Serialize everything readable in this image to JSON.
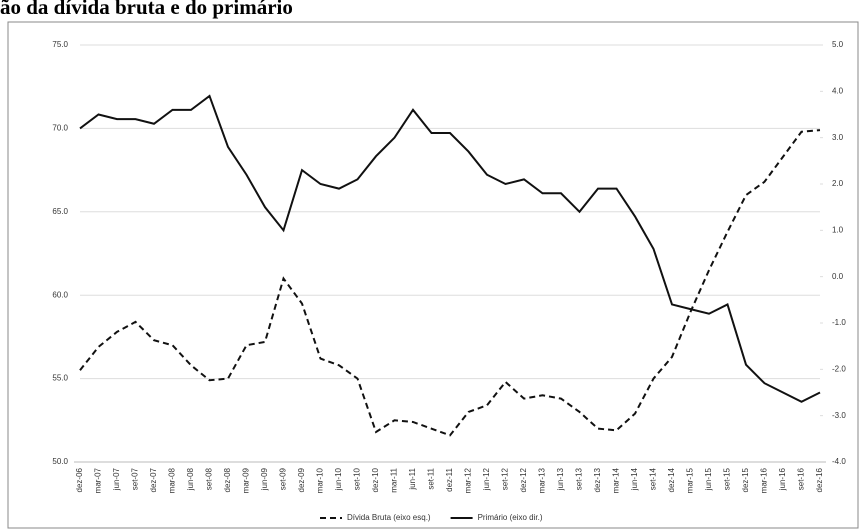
{
  "chart_data": {
    "type": "line",
    "title": "ão da dívida bruta e do primário",
    "categories": [
      "dez-06",
      "mar-07",
      "jun-07",
      "set-07",
      "dez-07",
      "mar-08",
      "jun-08",
      "set-08",
      "dez-08",
      "mar-09",
      "jun-09",
      "set-09",
      "dez-09",
      "mar-10",
      "jun-10",
      "set-10",
      "dez-10",
      "mar-11",
      "jun-11",
      "set-11",
      "dez-11",
      "mar-12",
      "jun-12",
      "set-12",
      "dez-12",
      "mar-13",
      "jun-13",
      "set-13",
      "dez-13",
      "mar-14",
      "jun-14",
      "set-14",
      "dez-14",
      "mar-15",
      "jun-15",
      "set-15",
      "dez-15",
      "mar-16",
      "jun-16",
      "set-16",
      "dez-16"
    ],
    "series": [
      {
        "name": "Dívida Bruta (eixo esq.)",
        "color": "#111111",
        "dash": true,
        "axis": "y",
        "values": [
          55.5,
          56.9,
          57.8,
          58.4,
          57.3,
          57.0,
          55.8,
          54.9,
          55.0,
          57.0,
          57.2,
          61.0,
          59.5,
          56.2,
          55.8,
          55.0,
          51.8,
          52.5,
          52.4,
          52.0,
          51.6,
          53.0,
          53.4,
          54.8,
          53.8,
          54.0,
          53.8,
          53.0,
          52.0,
          51.9,
          52.9,
          55.0,
          56.3,
          59.0,
          61.5,
          63.8,
          66.0,
          66.8,
          68.3,
          69.8,
          69.9
        ]
      },
      {
        "name": "Primário (eixo dir.)",
        "color": "#111111",
        "dash": false,
        "axis": "y2",
        "values": [
          3.2,
          3.5,
          3.4,
          3.4,
          3.3,
          3.6,
          3.6,
          3.9,
          2.8,
          2.2,
          1.5,
          1.0,
          2.3,
          2.0,
          1.9,
          2.1,
          2.6,
          3.0,
          3.6,
          3.1,
          3.1,
          2.7,
          2.2,
          2.0,
          2.1,
          1.8,
          1.8,
          1.4,
          1.9,
          1.9,
          1.3,
          0.6,
          -0.6,
          -0.7,
          -0.8,
          -0.6,
          -1.9,
          -2.3,
          -2.5,
          -2.7,
          -2.5
        ]
      }
    ],
    "ylim": [
      50,
      75
    ],
    "yticks": [
      {
        "value": 50,
        "label": "50.0"
      },
      {
        "value": 55,
        "label": "55.0"
      },
      {
        "value": 60,
        "label": "60.0"
      },
      {
        "value": 65,
        "label": "65.0"
      },
      {
        "value": 70,
        "label": "70.0"
      },
      {
        "value": 75,
        "label": "75.0"
      }
    ],
    "y2lim": [
      -4,
      5
    ],
    "y2ticks": [
      {
        "value": -4,
        "label": "-4.0"
      },
      {
        "value": -3,
        "label": "-3.0"
      },
      {
        "value": -2,
        "label": "-2.0"
      },
      {
        "value": -1,
        "label": "-1.0"
      },
      {
        "value": 0,
        "label": "0.0"
      },
      {
        "value": 1,
        "label": "1.0"
      },
      {
        "value": 2,
        "label": "2.0"
      },
      {
        "value": 3,
        "label": "3.0"
      },
      {
        "value": 4,
        "label": "4.0"
      },
      {
        "value": 5,
        "label": "5.0"
      }
    ],
    "grid": true
  }
}
